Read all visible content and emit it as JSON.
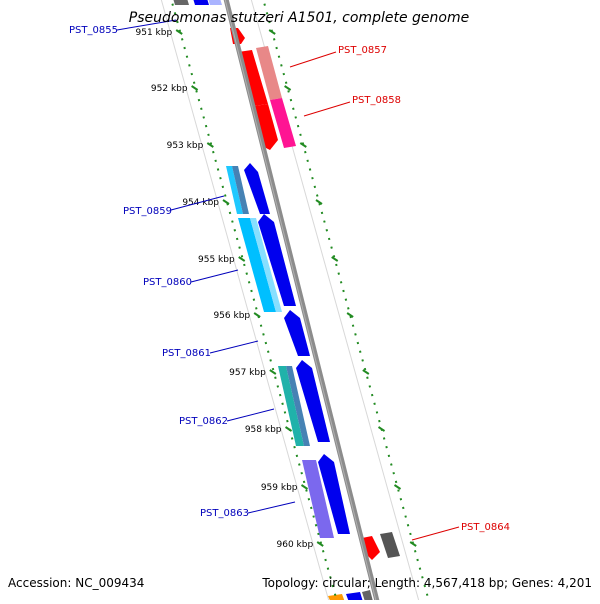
{
  "title": "Pseudomonas stutzeri A1501, complete genome",
  "footer": {
    "accession": "Accession: NC_009434",
    "summary": "Topology: circular; Length: 4,567,418 bp; Genes: 4,201"
  },
  "scale": {
    "unit": "kbp",
    "ticks": [
      "951 kbp",
      "952 kbp",
      "953 kbp",
      "954 kbp",
      "955 kbp",
      "956 kbp",
      "957 kbp",
      "958 kbp",
      "959 kbp",
      "960 kbp"
    ]
  },
  "gene_labels": [
    {
      "name": "PST_0855",
      "strand": "minus",
      "color": "#0000bb"
    },
    {
      "name": "PST_0857",
      "strand": "plus",
      "color": "#dd0000"
    },
    {
      "name": "PST_0858",
      "strand": "plus",
      "color": "#dd0000"
    },
    {
      "name": "PST_0859",
      "strand": "minus",
      "color": "#0000bb"
    },
    {
      "name": "PST_0860",
      "strand": "minus",
      "color": "#0000bb"
    },
    {
      "name": "PST_0861",
      "strand": "minus",
      "color": "#0000bb"
    },
    {
      "name": "PST_0862",
      "strand": "minus",
      "color": "#0000bb"
    },
    {
      "name": "PST_0863",
      "strand": "minus",
      "color": "#0000bb"
    },
    {
      "name": "PST_0864",
      "strand": "plus",
      "color": "#dd0000"
    }
  ],
  "colors": {
    "backbone": "#8c8c8c",
    "tick_green": "#228b22",
    "plus_label": "#dd0000",
    "minus_label": "#0000bb"
  }
}
